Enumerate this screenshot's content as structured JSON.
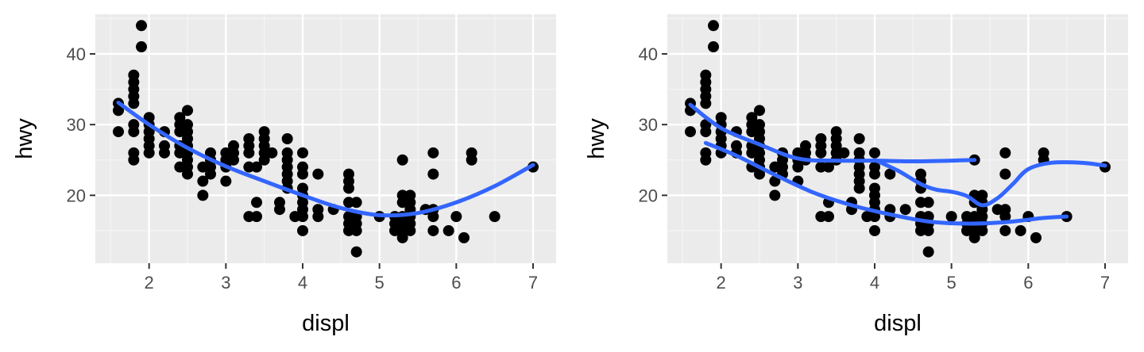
{
  "chart_data": [
    {
      "type": "scatter",
      "xlabel": "displ",
      "ylabel": "hwy",
      "xlim": [
        1.3,
        7.3
      ],
      "ylim": [
        10.4,
        45.6
      ],
      "xticks": [
        2,
        3,
        4,
        5,
        6,
        7
      ],
      "yticks": [
        20,
        30,
        40
      ],
      "grid": true,
      "legend": "none",
      "points": [
        [
          1.6,
          33
        ],
        [
          1.6,
          32
        ],
        [
          1.6,
          29
        ],
        [
          1.8,
          37
        ],
        [
          1.8,
          36
        ],
        [
          1.8,
          35
        ],
        [
          1.8,
          34
        ],
        [
          1.8,
          33
        ],
        [
          1.8,
          30
        ],
        [
          1.8,
          29
        ],
        [
          1.8,
          26
        ],
        [
          1.8,
          25
        ],
        [
          1.9,
          44
        ],
        [
          1.9,
          41
        ],
        [
          2.0,
          31
        ],
        [
          2.0,
          30
        ],
        [
          2.0,
          29
        ],
        [
          2.0,
          28
        ],
        [
          2.0,
          27
        ],
        [
          2.0,
          26
        ],
        [
          2.2,
          29
        ],
        [
          2.2,
          27
        ],
        [
          2.2,
          26
        ],
        [
          2.4,
          31
        ],
        [
          2.4,
          30
        ],
        [
          2.4,
          29
        ],
        [
          2.4,
          27
        ],
        [
          2.4,
          26
        ],
        [
          2.4,
          24
        ],
        [
          2.5,
          32
        ],
        [
          2.5,
          30
        ],
        [
          2.5,
          29
        ],
        [
          2.5,
          28
        ],
        [
          2.5,
          27
        ],
        [
          2.5,
          26
        ],
        [
          2.5,
          25
        ],
        [
          2.5,
          24
        ],
        [
          2.5,
          23
        ],
        [
          2.7,
          24
        ],
        [
          2.7,
          22
        ],
        [
          2.7,
          20
        ],
        [
          2.8,
          26
        ],
        [
          2.8,
          25
        ],
        [
          2.8,
          24
        ],
        [
          2.8,
          23
        ],
        [
          3.0,
          26
        ],
        [
          3.0,
          25
        ],
        [
          3.0,
          24
        ],
        [
          3.0,
          22
        ],
        [
          3.1,
          27
        ],
        [
          3.1,
          26
        ],
        [
          3.1,
          25
        ],
        [
          3.3,
          28
        ],
        [
          3.3,
          27
        ],
        [
          3.3,
          26
        ],
        [
          3.3,
          24
        ],
        [
          3.3,
          17
        ],
        [
          3.4,
          24
        ],
        [
          3.4,
          19
        ],
        [
          3.4,
          17
        ],
        [
          3.5,
          29
        ],
        [
          3.5,
          28
        ],
        [
          3.5,
          27
        ],
        [
          3.5,
          26
        ],
        [
          3.5,
          25
        ],
        [
          3.6,
          26
        ],
        [
          3.7,
          19
        ],
        [
          3.7,
          18
        ],
        [
          3.8,
          28
        ],
        [
          3.8,
          26
        ],
        [
          3.8,
          25
        ],
        [
          3.8,
          24
        ],
        [
          3.8,
          23
        ],
        [
          3.8,
          22
        ],
        [
          3.8,
          21
        ],
        [
          3.9,
          17
        ],
        [
          4.0,
          26
        ],
        [
          4.0,
          24
        ],
        [
          4.0,
          23
        ],
        [
          4.0,
          21
        ],
        [
          4.0,
          20
        ],
        [
          4.0,
          19
        ],
        [
          4.0,
          18
        ],
        [
          4.0,
          17
        ],
        [
          4.0,
          15
        ],
        [
          4.2,
          23
        ],
        [
          4.2,
          18
        ],
        [
          4.2,
          17
        ],
        [
          4.4,
          18
        ],
        [
          4.6,
          23
        ],
        [
          4.6,
          22
        ],
        [
          4.6,
          21
        ],
        [
          4.6,
          19
        ],
        [
          4.6,
          17
        ],
        [
          4.6,
          16
        ],
        [
          4.6,
          15
        ],
        [
          4.7,
          19
        ],
        [
          4.7,
          17
        ],
        [
          4.7,
          16
        ],
        [
          4.7,
          15
        ],
        [
          4.7,
          12
        ],
        [
          5.0,
          17
        ],
        [
          5.2,
          17
        ],
        [
          5.2,
          16
        ],
        [
          5.2,
          15
        ],
        [
          5.3,
          25
        ],
        [
          5.3,
          20
        ],
        [
          5.3,
          19
        ],
        [
          5.3,
          17
        ],
        [
          5.3,
          16
        ],
        [
          5.3,
          15
        ],
        [
          5.3,
          14
        ],
        [
          5.4,
          20
        ],
        [
          5.4,
          19
        ],
        [
          5.4,
          18
        ],
        [
          5.4,
          17
        ],
        [
          5.4,
          16
        ],
        [
          5.4,
          15
        ],
        [
          5.6,
          18
        ],
        [
          5.7,
          26
        ],
        [
          5.7,
          23
        ],
        [
          5.7,
          18
        ],
        [
          5.7,
          17
        ],
        [
          5.7,
          15
        ],
        [
          5.9,
          15
        ],
        [
          6.0,
          17
        ],
        [
          6.1,
          14
        ],
        [
          6.2,
          26
        ],
        [
          6.2,
          25
        ],
        [
          6.5,
          17
        ],
        [
          7.0,
          24
        ]
      ],
      "smooth_lines": [
        [
          [
            1.6,
            33.1
          ],
          [
            2.0,
            30.0
          ],
          [
            2.5,
            26.7
          ],
          [
            3.0,
            24.1
          ],
          [
            3.5,
            22.0
          ],
          [
            4.0,
            20.0
          ],
          [
            4.5,
            18.2
          ],
          [
            5.0,
            17.2
          ],
          [
            5.5,
            17.5
          ],
          [
            6.0,
            19.0
          ],
          [
            6.5,
            21.3
          ],
          [
            7.0,
            24.3
          ]
        ]
      ]
    },
    {
      "type": "scatter",
      "xlabel": "displ",
      "ylabel": "hwy",
      "xlim": [
        1.3,
        7.3
      ],
      "ylim": [
        10.4,
        45.6
      ],
      "xticks": [
        2,
        3,
        4,
        5,
        6,
        7
      ],
      "yticks": [
        20,
        30,
        40
      ],
      "grid": true,
      "legend": "none",
      "points_ref": 0,
      "smooth_lines": [
        [
          [
            1.6,
            32.8
          ],
          [
            2.0,
            29.5
          ],
          [
            2.5,
            27.2
          ],
          [
            3.0,
            25.2
          ],
          [
            3.5,
            24.9
          ],
          [
            4.0,
            24.9
          ],
          [
            4.5,
            24.8
          ],
          [
            5.0,
            24.9
          ],
          [
            5.3,
            25.0
          ]
        ],
        [
          [
            1.8,
            27.4
          ],
          [
            2.2,
            25.6
          ],
          [
            2.7,
            22.9
          ],
          [
            3.2,
            20.4
          ],
          [
            3.7,
            18.6
          ],
          [
            4.2,
            17.3
          ],
          [
            4.7,
            16.3
          ],
          [
            5.2,
            16.0
          ],
          [
            5.7,
            16.2
          ],
          [
            6.2,
            16.8
          ],
          [
            6.5,
            17.0
          ]
        ],
        [
          [
            4.0,
            25.0
          ],
          [
            4.3,
            23.5
          ],
          [
            4.6,
            21.6
          ],
          [
            4.8,
            20.8
          ],
          [
            5.0,
            20.5
          ],
          [
            5.2,
            19.9
          ],
          [
            5.4,
            18.6
          ],
          [
            5.6,
            19.6
          ],
          [
            5.8,
            21.6
          ],
          [
            6.0,
            23.7
          ],
          [
            6.3,
            24.6
          ],
          [
            6.7,
            24.6
          ],
          [
            7.0,
            24.2
          ]
        ]
      ]
    }
  ],
  "style": {
    "panel_bg": "#ebebeb",
    "grid_major": "#ffffff",
    "grid_minor": "#f5f5f5",
    "point_color": "#000000",
    "smooth_color": "#3366ff",
    "tick_color": "#333333"
  }
}
